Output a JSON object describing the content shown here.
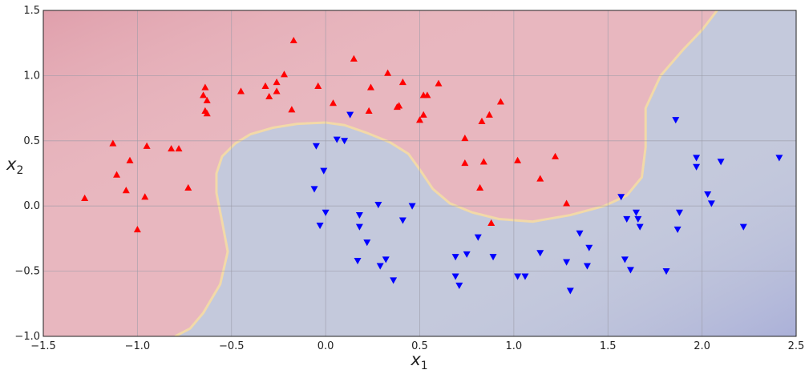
{
  "chart_data": {
    "type": "scatter",
    "xlabel": "x",
    "xlabel_sub": "1",
    "ylabel": "x",
    "ylabel_sub": "2",
    "xlim": [
      -1.5,
      2.5
    ],
    "ylim": [
      -1.0,
      1.5
    ],
    "xticks": [
      -1.5,
      -1.0,
      -0.5,
      0.0,
      0.5,
      1.0,
      1.5,
      2.0,
      2.5
    ],
    "xtick_labels": [
      "−1.5",
      "−1.0",
      "−0.5",
      "0.0",
      "0.5",
      "1.0",
      "1.5",
      "2.0",
      "2.5"
    ],
    "yticks": [
      -1.0,
      -0.5,
      0.0,
      0.5,
      1.0,
      1.5
    ],
    "ytick_labels": [
      "−1.0",
      "−0.5",
      "0.0",
      "0.5",
      "1.0",
      "1.5"
    ],
    "grid": true,
    "colors": {
      "class0_marker": "#ff0000",
      "class1_marker": "#0000ff",
      "class0_region": "#e8b7bf",
      "class1_region": "#c4c9dc",
      "boundary": "#f2d9a8"
    },
    "decision_boundary": [
      [
        -0.8,
        -1.0
      ],
      [
        -0.72,
        -0.94
      ],
      [
        -0.65,
        -0.82
      ],
      [
        -0.56,
        -0.6
      ],
      [
        -0.52,
        -0.35
      ],
      [
        -0.55,
        -0.12
      ],
      [
        -0.58,
        0.1
      ],
      [
        -0.58,
        0.25
      ],
      [
        -0.55,
        0.38
      ],
      [
        -0.48,
        0.48
      ],
      [
        -0.4,
        0.55
      ],
      [
        -0.28,
        0.6
      ],
      [
        -0.15,
        0.63
      ],
      [
        0.0,
        0.64
      ],
      [
        0.1,
        0.62
      ],
      [
        0.22,
        0.56
      ],
      [
        0.34,
        0.49
      ],
      [
        0.44,
        0.4
      ],
      [
        0.5,
        0.28
      ],
      [
        0.57,
        0.13
      ],
      [
        0.66,
        0.02
      ],
      [
        0.78,
        -0.05
      ],
      [
        0.92,
        -0.1
      ],
      [
        1.1,
        -0.12
      ],
      [
        1.3,
        -0.07
      ],
      [
        1.48,
        0.0
      ],
      [
        1.6,
        0.08
      ],
      [
        1.68,
        0.22
      ],
      [
        1.7,
        0.45
      ],
      [
        1.7,
        0.75
      ],
      [
        1.78,
        1.0
      ],
      [
        1.9,
        1.2
      ],
      [
        2.0,
        1.35
      ],
      [
        2.08,
        1.5
      ]
    ],
    "series": [
      {
        "marker": "triangle-up",
        "points": [
          [
            -1.28,
            0.06
          ],
          [
            -1.13,
            0.48
          ],
          [
            -1.11,
            0.24
          ],
          [
            -1.04,
            0.35
          ],
          [
            -1.06,
            0.12
          ],
          [
            -1.0,
            -0.18
          ],
          [
            -0.95,
            0.46
          ],
          [
            -0.96,
            0.07
          ],
          [
            -0.82,
            0.44
          ],
          [
            -0.78,
            0.44
          ],
          [
            -0.73,
            0.14
          ],
          [
            -0.65,
            0.85
          ],
          [
            -0.64,
            0.91
          ],
          [
            -0.63,
            0.81
          ],
          [
            -0.64,
            0.73
          ],
          [
            -0.63,
            0.71
          ],
          [
            -0.45,
            0.88
          ],
          [
            -0.32,
            0.92
          ],
          [
            -0.3,
            0.84
          ],
          [
            -0.26,
            0.95
          ],
          [
            -0.26,
            0.88
          ],
          [
            -0.22,
            1.01
          ],
          [
            -0.18,
            0.74
          ],
          [
            -0.17,
            1.27
          ],
          [
            -0.04,
            0.92
          ],
          [
            0.04,
            0.79
          ],
          [
            0.15,
            1.13
          ],
          [
            0.23,
            0.73
          ],
          [
            0.24,
            0.91
          ],
          [
            0.33,
            1.02
          ],
          [
            0.38,
            0.76
          ],
          [
            0.39,
            0.77
          ],
          [
            0.41,
            0.95
          ],
          [
            0.5,
            0.66
          ],
          [
            0.52,
            0.7
          ],
          [
            0.52,
            0.85
          ],
          [
            0.54,
            0.85
          ],
          [
            0.6,
            0.94
          ],
          [
            0.74,
            0.52
          ],
          [
            0.74,
            0.33
          ],
          [
            0.82,
            0.14
          ],
          [
            0.83,
            0.65
          ],
          [
            0.84,
            0.34
          ],
          [
            0.87,
            0.7
          ],
          [
            0.88,
            -0.13
          ],
          [
            0.93,
            0.8
          ],
          [
            1.02,
            0.35
          ],
          [
            1.14,
            0.21
          ],
          [
            1.22,
            0.38
          ],
          [
            1.28,
            0.02
          ]
        ]
      },
      {
        "marker": "triangle-down",
        "points": [
          [
            -0.05,
            0.46
          ],
          [
            -0.06,
            0.13
          ],
          [
            -0.03,
            -0.15
          ],
          [
            -0.01,
            0.27
          ],
          [
            0.0,
            -0.05
          ],
          [
            0.06,
            0.51
          ],
          [
            0.1,
            0.5
          ],
          [
            0.13,
            0.7
          ],
          [
            0.17,
            -0.42
          ],
          [
            0.18,
            -0.07
          ],
          [
            0.18,
            -0.16
          ],
          [
            0.22,
            -0.28
          ],
          [
            0.28,
            0.01
          ],
          [
            0.29,
            -0.46
          ],
          [
            0.32,
            -0.41
          ],
          [
            0.36,
            -0.57
          ],
          [
            0.41,
            -0.11
          ],
          [
            0.46,
            0.0
          ],
          [
            0.69,
            -0.39
          ],
          [
            0.69,
            -0.54
          ],
          [
            0.71,
            -0.61
          ],
          [
            0.75,
            -0.37
          ],
          [
            0.81,
            -0.24
          ],
          [
            0.89,
            -0.39
          ],
          [
            1.02,
            -0.54
          ],
          [
            1.06,
            -0.54
          ],
          [
            1.14,
            -0.36
          ],
          [
            1.28,
            -0.43
          ],
          [
            1.3,
            -0.65
          ],
          [
            1.35,
            -0.21
          ],
          [
            1.39,
            -0.46
          ],
          [
            1.4,
            -0.32
          ],
          [
            1.57,
            0.07
          ],
          [
            1.59,
            -0.41
          ],
          [
            1.6,
            -0.1
          ],
          [
            1.62,
            -0.49
          ],
          [
            1.65,
            -0.05
          ],
          [
            1.66,
            -0.1
          ],
          [
            1.67,
            -0.16
          ],
          [
            1.81,
            -0.5
          ],
          [
            1.86,
            0.66
          ],
          [
            1.87,
            -0.18
          ],
          [
            1.88,
            -0.05
          ],
          [
            1.97,
            0.37
          ],
          [
            1.97,
            0.3
          ],
          [
            2.03,
            0.09
          ],
          [
            2.05,
            0.02
          ],
          [
            2.1,
            0.34
          ],
          [
            2.22,
            -0.16
          ],
          [
            2.41,
            0.37
          ]
        ]
      }
    ]
  }
}
